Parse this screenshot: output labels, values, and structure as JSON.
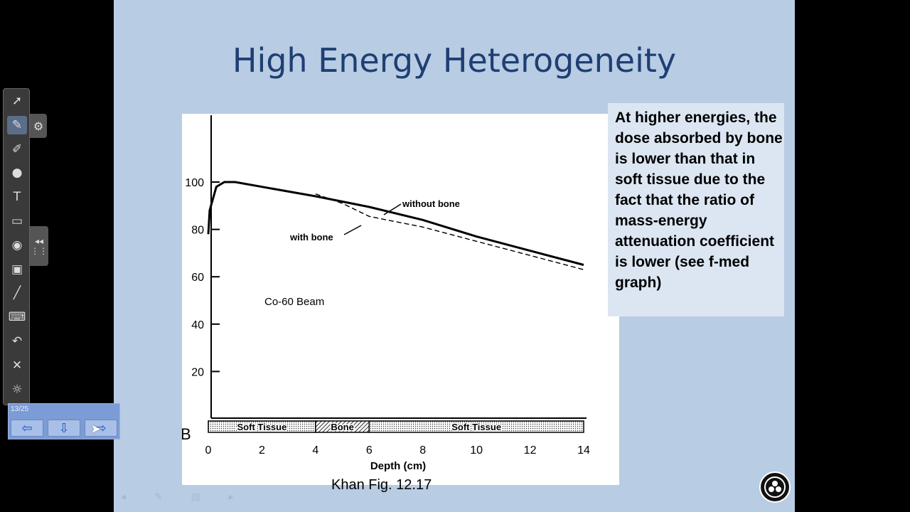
{
  "slide": {
    "title": "High Energy Heterogeneity",
    "callout": "At higher energies, the dose absorbed by bone is lower than that in soft tissue due to the fact that the ratio of mass-energy attenuation coefficient is lower (see f-med graph)",
    "caption": "Khan Fig. 12.17"
  },
  "toolbar": {
    "tools": [
      {
        "name": "select-arrow-icon",
        "glyph": "➚"
      },
      {
        "name": "pen-icon",
        "glyph": "✎"
      },
      {
        "name": "marker-icon",
        "glyph": "✐"
      },
      {
        "name": "highlighter-icon",
        "glyph": "●"
      },
      {
        "name": "text-icon",
        "glyph": "T"
      },
      {
        "name": "eraser-icon",
        "glyph": "▭"
      },
      {
        "name": "magic-pen-icon",
        "glyph": "◉"
      },
      {
        "name": "note-icon",
        "glyph": "▣"
      },
      {
        "name": "line-icon",
        "glyph": "╱"
      },
      {
        "name": "keyboard-icon",
        "glyph": "⌨"
      },
      {
        "name": "undo-icon",
        "glyph": "↶"
      },
      {
        "name": "clear-icon",
        "glyph": "✕"
      },
      {
        "name": "light-icon",
        "glyph": "☼"
      }
    ],
    "settings_glyph": "⚙",
    "collapse_glyph": "◂◂"
  },
  "navigator": {
    "page": "13/25",
    "prev_glyph": "⇦",
    "menu_glyph": "⇩",
    "next_glyph": "⇨"
  },
  "chart_data": {
    "type": "line",
    "title": "Co-60 Beam",
    "xlabel": "Depth (cm)",
    "ylabel": "",
    "xlim": [
      0,
      14
    ],
    "ylim": [
      0,
      100
    ],
    "x_ticks": [
      "0",
      "2",
      "4",
      "6",
      "8",
      "10",
      "12",
      "14"
    ],
    "y_ticks": [
      "20",
      "40",
      "60",
      "80",
      "100"
    ],
    "series": [
      {
        "name": "without bone",
        "style": "solid",
        "x": [
          0,
          0.05,
          0.3,
          0.6,
          1,
          2,
          4,
          6,
          8,
          10,
          12,
          14
        ],
        "y": [
          78,
          88,
          98,
          100,
          100,
          98,
          94,
          89.5,
          84,
          77,
          71,
          65
        ]
      },
      {
        "name": "with bone",
        "style": "dashed",
        "x": [
          4,
          5,
          6,
          8,
          10,
          12,
          14
        ],
        "y": [
          95,
          91,
          85.5,
          81,
          75,
          69,
          63
        ]
      }
    ],
    "regions": [
      {
        "label": "Soft Tissue",
        "from": 0,
        "to": 4
      },
      {
        "label": "Bone",
        "from": 4,
        "to": 6
      },
      {
        "label": "Soft Tissue",
        "from": 6,
        "to": 14
      }
    ],
    "panel_label": "B"
  }
}
